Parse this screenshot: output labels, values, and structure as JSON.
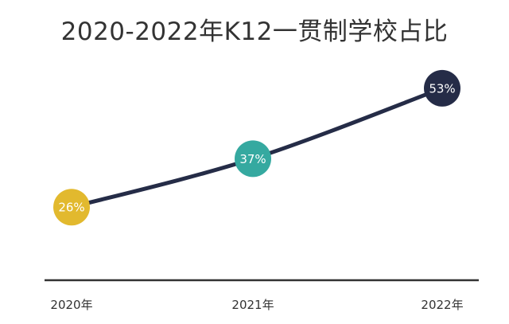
{
  "chart_data": {
    "type": "line",
    "title": "2020-2022年K12一贯制学校占比",
    "categories": [
      "2020年",
      "2021年",
      "2022年"
    ],
    "values": [
      26,
      37,
      53
    ],
    "data_labels": [
      "26%",
      "37%",
      "53%"
    ],
    "unit": "%",
    "ylim": [
      0,
      60
    ],
    "grid": false,
    "legend": "none",
    "colors": {
      "line": "#252c47",
      "axis": "#333333",
      "stem": "#35b09c",
      "markers": [
        "#e2b92e",
        "#35a9a0",
        "#252c47"
      ],
      "text": "#333333"
    }
  }
}
